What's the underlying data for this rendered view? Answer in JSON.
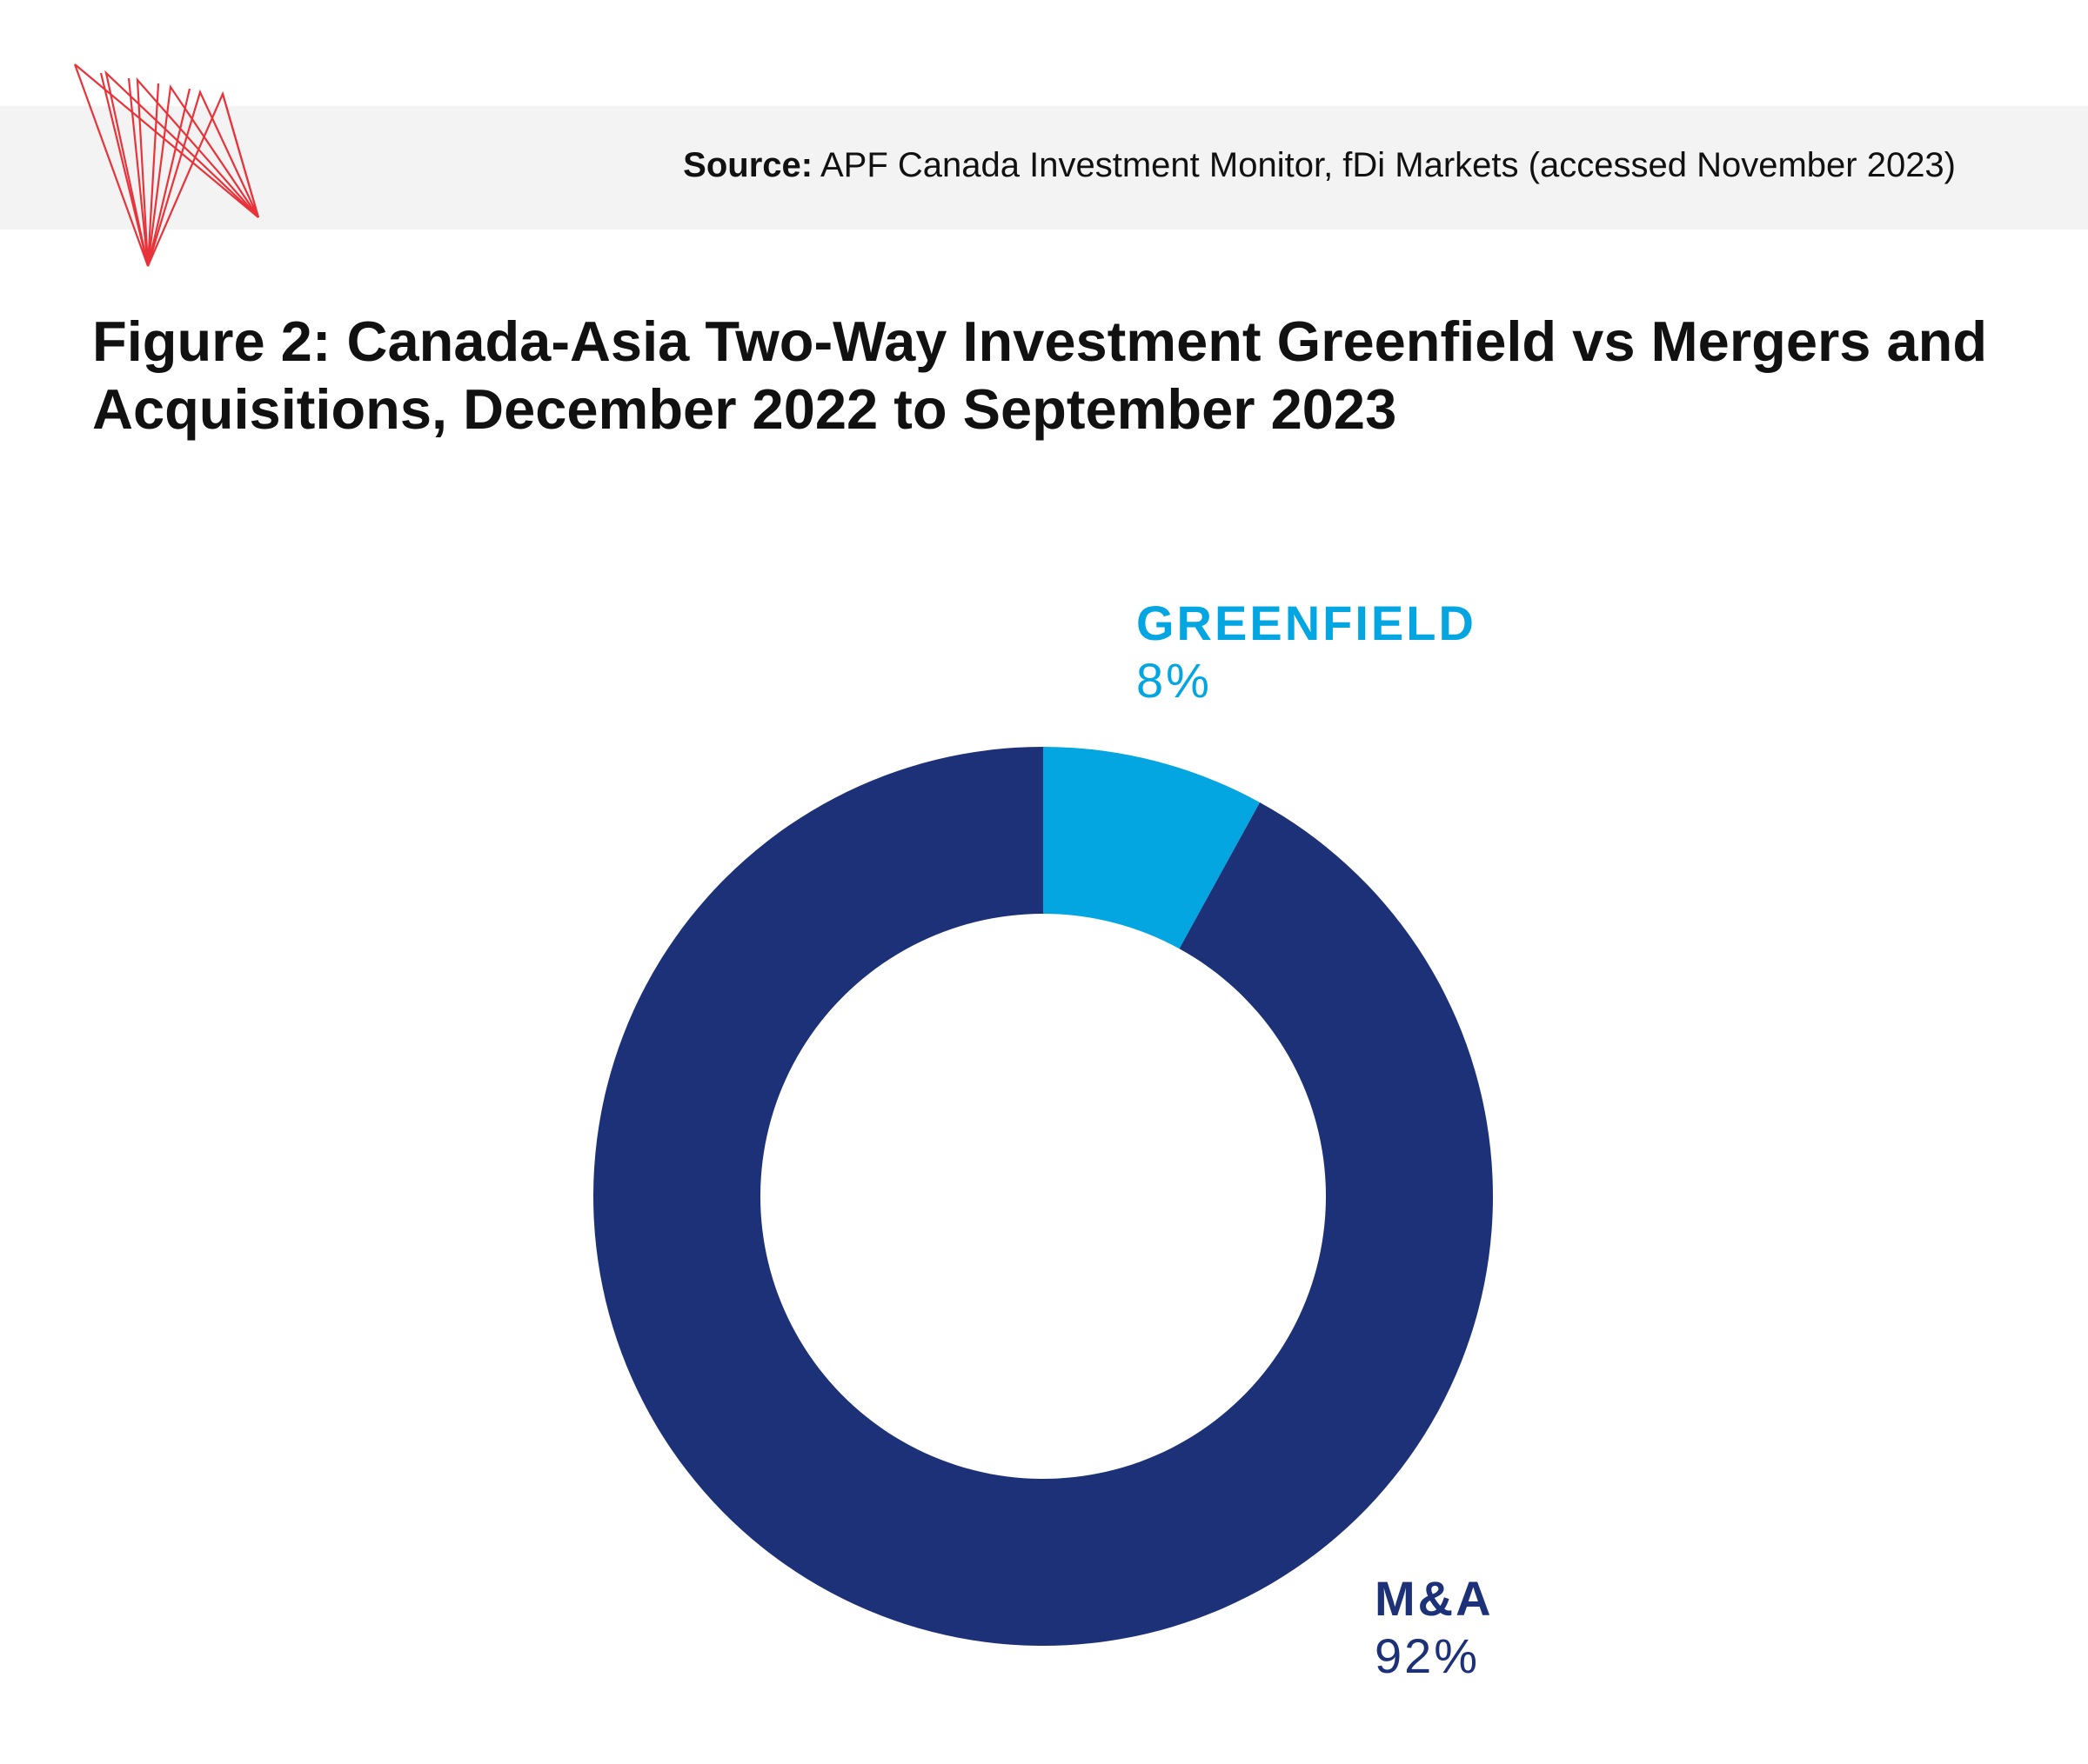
{
  "source": {
    "label": "Source:",
    "text": "APF Canada Investment Monitor, fDi Markets (accessed November 2023)"
  },
  "title": "Figure 2: Canada-Asia Two-Way Investment Greenfield vs Mergers and Acquisitions, December 2022 to September 2023",
  "colors": {
    "greenfield": "#04a6e2",
    "ma": "#1c3177",
    "logo": "#e8333a",
    "band": "#f3f3f3"
  },
  "logo_icon": "apf-canada-red-line-mark",
  "chart_data": {
    "type": "pie",
    "variant": "donut",
    "start_angle": "12 o'clock",
    "direction": "clockwise",
    "slices": [
      {
        "label": "GREENFIELD",
        "value": 8,
        "value_label": "8%"
      },
      {
        "label": "M&A",
        "value": 92,
        "value_label": "92%"
      }
    ]
  }
}
